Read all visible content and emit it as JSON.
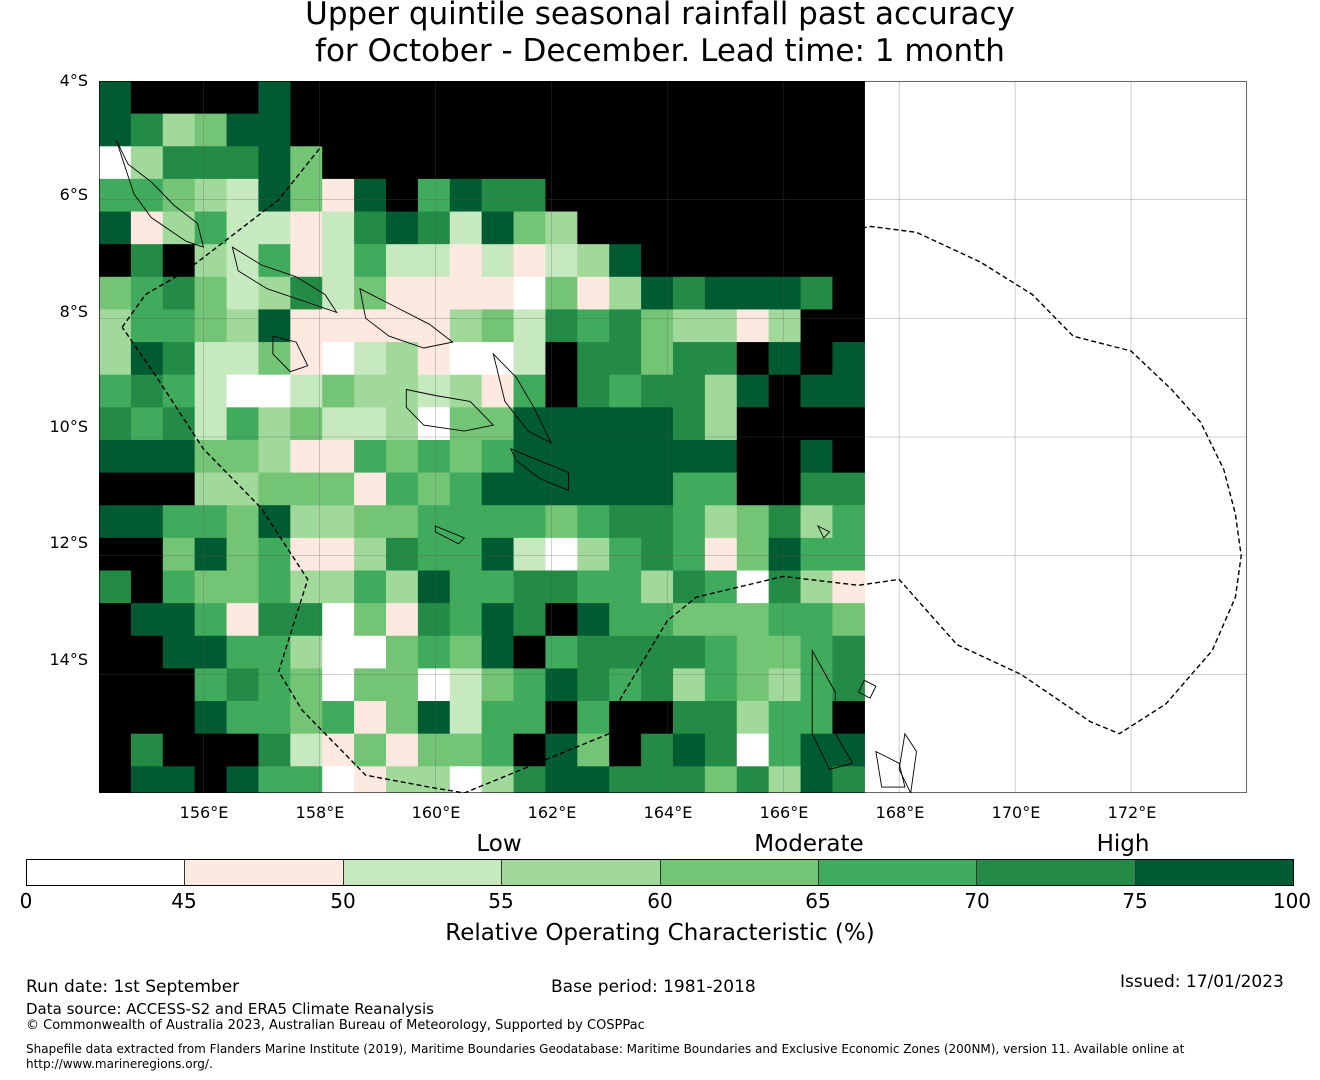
{
  "title": {
    "line1": "Upper quintile seasonal rainfall past accuracy",
    "line2": "for October - December. Lead time: 1 month"
  },
  "map": {
    "lon_range": [
      154.2,
      174.0
    ],
    "lat_range": [
      -16.0,
      -4.0
    ],
    "lat_labels": [
      "4°S",
      "6°S",
      "8°S",
      "10°S",
      "12°S",
      "14°S"
    ],
    "lon_labels": [
      "156°E",
      "158°E",
      "160°E",
      "162°E",
      "164°E",
      "166°E",
      "168°E",
      "170°E",
      "172°E"
    ],
    "grid_lon_start": 154.2,
    "grid_lat_start": -4.0,
    "cell_deg": 0.55,
    "grid_cells": [
      [
        7,
        8,
        8,
        8,
        8,
        7,
        8,
        8,
        8,
        8,
        8,
        8,
        8,
        8,
        8,
        8,
        8,
        8,
        8,
        8,
        8,
        8,
        8,
        8
      ],
      [
        7,
        6,
        3,
        4,
        7,
        7,
        8,
        8,
        8,
        8,
        8,
        8,
        8,
        8,
        8,
        8,
        8,
        8,
        8,
        8,
        8,
        8,
        8,
        8
      ],
      [
        0,
        3,
        6,
        6,
        6,
        7,
        4,
        8,
        8,
        8,
        8,
        8,
        8,
        8,
        8,
        8,
        8,
        8,
        8,
        8,
        8,
        8,
        8,
        8
      ],
      [
        5,
        5,
        4,
        3,
        2,
        7,
        4,
        1,
        7,
        8,
        5,
        7,
        6,
        6,
        8,
        8,
        8,
        8,
        8,
        8,
        8,
        8,
        8,
        8
      ],
      [
        7,
        1,
        3,
        5,
        2,
        2,
        1,
        2,
        6,
        7,
        6,
        2,
        7,
        4,
        3,
        8,
        8,
        8,
        8,
        8,
        8,
        8,
        8,
        8
      ],
      [
        8,
        6,
        8,
        3,
        2,
        5,
        1,
        2,
        5,
        2,
        2,
        1,
        2,
        1,
        2,
        3,
        7,
        8,
        8,
        8,
        8,
        8,
        8,
        8
      ],
      [
        4,
        5,
        6,
        4,
        2,
        3,
        6,
        2,
        4,
        1,
        1,
        1,
        1,
        0,
        4,
        1,
        3,
        7,
        6,
        7,
        7,
        7,
        6,
        8
      ],
      [
        3,
        5,
        5,
        4,
        3,
        7,
        1,
        1,
        1,
        1,
        1,
        3,
        4,
        2,
        6,
        5,
        6,
        4,
        3,
        3,
        1,
        3,
        8,
        8
      ],
      [
        3,
        7,
        6,
        2,
        2,
        4,
        1,
        0,
        2,
        3,
        1,
        0,
        0,
        2,
        8,
        6,
        6,
        4,
        6,
        6,
        8,
        7,
        8,
        7
      ],
      [
        5,
        6,
        5,
        2,
        0,
        0,
        2,
        4,
        3,
        3,
        2,
        3,
        1,
        5,
        8,
        6,
        5,
        6,
        6,
        3,
        7,
        8,
        7,
        7
      ],
      [
        6,
        5,
        6,
        2,
        5,
        3,
        4,
        2,
        2,
        3,
        0,
        4,
        4,
        7,
        7,
        7,
        7,
        7,
        6,
        3,
        8,
        8,
        8,
        8
      ],
      [
        7,
        7,
        7,
        4,
        4,
        3,
        1,
        1,
        5,
        4,
        5,
        4,
        5,
        7,
        7,
        7,
        7,
        7,
        7,
        7,
        8,
        8,
        7,
        8
      ],
      [
        8,
        8,
        8,
        3,
        3,
        4,
        4,
        4,
        1,
        5,
        4,
        5,
        7,
        7,
        7,
        7,
        7,
        7,
        5,
        5,
        8,
        8,
        6,
        6
      ],
      [
        7,
        7,
        5,
        5,
        4,
        7,
        3,
        3,
        4,
        4,
        5,
        5,
        5,
        5,
        4,
        5,
        6,
        6,
        5,
        3,
        4,
        6,
        3,
        5
      ],
      [
        8,
        8,
        4,
        7,
        4,
        5,
        1,
        1,
        3,
        6,
        5,
        5,
        7,
        2,
        0,
        3,
        5,
        6,
        5,
        1,
        4,
        7,
        5,
        5
      ],
      [
        6,
        8,
        5,
        4,
        4,
        5,
        3,
        3,
        5,
        3,
        7,
        5,
        5,
        6,
        6,
        5,
        5,
        3,
        6,
        5,
        0,
        6,
        3,
        1
      ],
      [
        8,
        7,
        7,
        5,
        1,
        6,
        6,
        0,
        4,
        1,
        6,
        5,
        7,
        6,
        8,
        7,
        5,
        5,
        4,
        4,
        4,
        5,
        5,
        4
      ],
      [
        8,
        8,
        7,
        7,
        5,
        5,
        3,
        0,
        0,
        4,
        5,
        4,
        7,
        8,
        5,
        6,
        6,
        6,
        6,
        5,
        4,
        4,
        5,
        6
      ],
      [
        8,
        8,
        8,
        5,
        6,
        5,
        4,
        0,
        4,
        4,
        0,
        2,
        4,
        5,
        7,
        6,
        5,
        6,
        3,
        5,
        4,
        3,
        5,
        6
      ],
      [
        8,
        8,
        8,
        7,
        5,
        5,
        4,
        5,
        1,
        4,
        7,
        2,
        5,
        5,
        8,
        5,
        8,
        8,
        6,
        6,
        3,
        5,
        5,
        8
      ],
      [
        8,
        6,
        8,
        8,
        8,
        6,
        2,
        1,
        4,
        1,
        4,
        4,
        5,
        8,
        7,
        4,
        8,
        6,
        7,
        6,
        0,
        5,
        7,
        7
      ],
      [
        8,
        7,
        7,
        8,
        7,
        5,
        5,
        0,
        1,
        3,
        3,
        0,
        3,
        6,
        7,
        7,
        6,
        6,
        6,
        4,
        6,
        3,
        7,
        6
      ]
    ],
    "eez_outline": [
      [
        154.6,
        -8.15
      ],
      [
        155.0,
        -7.6
      ],
      [
        155.7,
        -7.2
      ],
      [
        156.5,
        -6.6
      ],
      [
        157.3,
        -6.0
      ],
      [
        158.2,
        -4.9
      ],
      [
        160.6,
        -4.75
      ],
      [
        163.0,
        -4.15
      ],
      [
        163.2,
        -5.0
      ],
      [
        164.7,
        -5.5
      ],
      [
        165.9,
        -5.9
      ],
      [
        166.4,
        -6.2
      ],
      [
        166.8,
        -6.6
      ],
      [
        167.5,
        -6.45
      ],
      [
        168.3,
        -6.55
      ],
      [
        169.4,
        -7.05
      ],
      [
        170.3,
        -7.6
      ],
      [
        171.0,
        -8.3
      ],
      [
        172.0,
        -8.55
      ],
      [
        172.7,
        -9.2
      ],
      [
        173.2,
        -9.75
      ],
      [
        173.6,
        -10.55
      ],
      [
        173.8,
        -11.3
      ],
      [
        173.9,
        -12.0
      ],
      [
        173.8,
        -12.7
      ],
      [
        173.4,
        -13.6
      ],
      [
        172.6,
        -14.5
      ],
      [
        171.8,
        -15.0
      ],
      [
        171.3,
        -14.8
      ],
      [
        170.1,
        -14.0
      ],
      [
        169.0,
        -13.5
      ],
      [
        168.0,
        -12.4
      ],
      [
        167.3,
        -12.5
      ],
      [
        166.0,
        -12.35
      ],
      [
        164.5,
        -12.7
      ],
      [
        164.0,
        -13.1
      ],
      [
        163.2,
        -14.4
      ],
      [
        163.0,
        -15.0
      ],
      [
        160.5,
        -16.0
      ],
      [
        159.9,
        -15.9
      ],
      [
        158.8,
        -15.7
      ],
      [
        157.7,
        -14.6
      ],
      [
        157.3,
        -13.95
      ],
      [
        157.8,
        -12.4
      ],
      [
        157.0,
        -11.2
      ],
      [
        156.0,
        -10.2
      ],
      [
        155.2,
        -9.0
      ],
      [
        154.6,
        -8.15
      ]
    ],
    "coastlines": [
      [
        [
          154.5,
          -5.0
        ],
        [
          154.7,
          -5.4
        ],
        [
          155.1,
          -5.7
        ],
        [
          155.5,
          -6.1
        ],
        [
          155.9,
          -6.4
        ],
        [
          156.0,
          -6.8
        ],
        [
          155.7,
          -6.7
        ],
        [
          155.1,
          -6.3
        ],
        [
          154.8,
          -5.9
        ],
        [
          154.5,
          -5.0
        ]
      ],
      [
        [
          156.5,
          -6.8
        ],
        [
          157.0,
          -7.1
        ],
        [
          157.6,
          -7.3
        ],
        [
          158.1,
          -7.6
        ],
        [
          158.3,
          -7.9
        ],
        [
          157.7,
          -7.7
        ],
        [
          157.1,
          -7.5
        ],
        [
          156.6,
          -7.2
        ],
        [
          156.5,
          -6.8
        ]
      ],
      [
        [
          158.7,
          -7.5
        ],
        [
          159.3,
          -7.8
        ],
        [
          159.9,
          -8.1
        ],
        [
          160.3,
          -8.4
        ],
        [
          159.8,
          -8.5
        ],
        [
          159.2,
          -8.3
        ],
        [
          158.8,
          -8.0
        ],
        [
          158.7,
          -7.5
        ]
      ],
      [
        [
          159.5,
          -9.2
        ],
        [
          160.0,
          -9.3
        ],
        [
          160.6,
          -9.4
        ],
        [
          161.0,
          -9.8
        ],
        [
          160.5,
          -9.9
        ],
        [
          159.8,
          -9.8
        ],
        [
          159.5,
          -9.5
        ],
        [
          159.5,
          -9.2
        ]
      ],
      [
        [
          161.0,
          -8.6
        ],
        [
          161.4,
          -9.0
        ],
        [
          161.7,
          -9.5
        ],
        [
          162.0,
          -10.1
        ],
        [
          161.6,
          -9.9
        ],
        [
          161.2,
          -9.4
        ],
        [
          161.0,
          -8.6
        ]
      ],
      [
        [
          161.3,
          -10.2
        ],
        [
          161.8,
          -10.4
        ],
        [
          162.3,
          -10.6
        ],
        [
          162.3,
          -10.9
        ],
        [
          161.8,
          -10.7
        ],
        [
          161.4,
          -10.4
        ],
        [
          161.3,
          -10.2
        ]
      ],
      [
        [
          157.2,
          -8.3
        ],
        [
          157.6,
          -8.4
        ],
        [
          157.8,
          -8.8
        ],
        [
          157.5,
          -8.9
        ],
        [
          157.2,
          -8.6
        ],
        [
          157.2,
          -8.3
        ]
      ],
      [
        [
          160.0,
          -11.5
        ],
        [
          160.5,
          -11.7
        ],
        [
          160.4,
          -11.8
        ],
        [
          160.0,
          -11.6
        ],
        [
          160.0,
          -11.5
        ]
      ],
      [
        [
          166.5,
          -13.6
        ],
        [
          166.9,
          -14.3
        ],
        [
          166.9,
          -15.0
        ],
        [
          167.2,
          -15.5
        ],
        [
          166.8,
          -15.6
        ],
        [
          166.5,
          -15.0
        ],
        [
          166.5,
          -13.6
        ]
      ],
      [
        [
          167.6,
          -15.3
        ],
        [
          168.0,
          -15.5
        ],
        [
          168.1,
          -15.9
        ],
        [
          167.7,
          -15.9
        ],
        [
          167.6,
          -15.3
        ]
      ],
      [
        [
          168.1,
          -15.0
        ],
        [
          168.3,
          -15.3
        ],
        [
          168.2,
          -16.0
        ],
        [
          168.0,
          -15.6
        ],
        [
          168.1,
          -15.0
        ]
      ],
      [
        [
          167.4,
          -14.1
        ],
        [
          167.6,
          -14.2
        ],
        [
          167.5,
          -14.4
        ],
        [
          167.3,
          -14.3
        ],
        [
          167.4,
          -14.1
        ]
      ],
      [
        [
          165.8,
          -10.7
        ],
        [
          166.1,
          -10.8
        ],
        [
          166.0,
          -10.9
        ],
        [
          165.8,
          -10.7
        ]
      ],
      [
        [
          166.6,
          -11.5
        ],
        [
          166.8,
          -11.6
        ],
        [
          166.7,
          -11.7
        ],
        [
          166.6,
          -11.5
        ]
      ]
    ]
  },
  "colorbar": {
    "colors": [
      "#ffffff",
      "#fee9e0",
      "#c7e9c0",
      "#a1d99b",
      "#74c476",
      "#41ab5d",
      "#238b45",
      "#005a32"
    ],
    "ticks": [
      "0",
      "45",
      "50",
      "55",
      "60",
      "65",
      "70",
      "75",
      "100"
    ],
    "categories": [
      "Low",
      "Moderate",
      "High"
    ],
    "title": "Relative Operating Characteristic (%)"
  },
  "footer": {
    "run_date": "Run date: 1st September",
    "base_period": "Base period: 1981-2018",
    "issued": "Issued: 17/01/2023",
    "data_source": "Data source: ACCESS-S2 and ERA5 Climate Reanalysis",
    "copyright": "© Commonwealth of Australia 2023, Australian Bureau of Meteorology, Supported by COSPPac",
    "shapefile_line1": "Shapefile data extracted from Flanders Marine Institute (2019), Maritime Boundaries Geodatabase: Maritime Boundaries and Exclusive Economic Zones (200NM), version 11. Available online at",
    "shapefile_line2": "http://www.marineregions.org/."
  }
}
